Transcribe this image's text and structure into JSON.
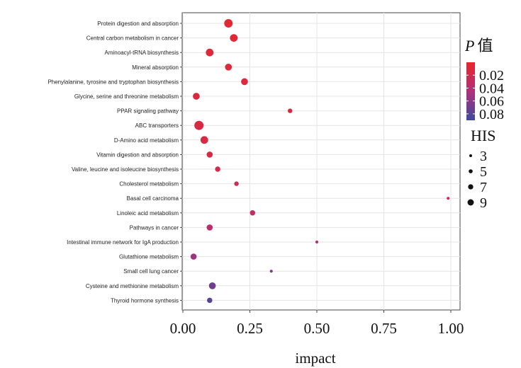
{
  "chart_data": {
    "type": "scatter",
    "xlabel": "impact",
    "ylabel": "",
    "title": "",
    "xlim": [
      0,
      1
    ],
    "x_ticks": [
      "0.00",
      "0.25",
      "0.50",
      "0.75",
      "1.00"
    ],
    "grid": true,
    "color_legend": {
      "title_italic": "P",
      "title_rest": "值",
      "ticks": [
        "0.02",
        "0.04",
        "0.06",
        "0.08"
      ],
      "range": [
        0.0,
        0.09
      ],
      "low_color": "#e8272b",
      "high_color": "#3e4a9e"
    },
    "size_legend": {
      "title": "HIS",
      "values": [
        "3",
        "5",
        "7",
        "9"
      ]
    },
    "points": [
      {
        "category": "Protein digestion and absorption",
        "x": 0.17,
        "p": 0.005,
        "his": 9
      },
      {
        "category": "Central carbon metabolism in cancer",
        "x": 0.19,
        "p": 0.006,
        "his": 8
      },
      {
        "category": "Aminoacyl-tRNA biosynthesis",
        "x": 0.1,
        "p": 0.008,
        "his": 8
      },
      {
        "category": "Mineral absorption",
        "x": 0.17,
        "p": 0.008,
        "his": 7
      },
      {
        "category": "Phenylalanine, tyrosine and tryptophan biosynthesis",
        "x": 0.23,
        "p": 0.009,
        "his": 7
      },
      {
        "category": "Glycine, serine and threonine metabolism",
        "x": 0.05,
        "p": 0.011,
        "his": 7
      },
      {
        "category": "PPAR signaling pathway",
        "x": 0.4,
        "p": 0.012,
        "his": 4
      },
      {
        "category": "ABC transporters",
        "x": 0.06,
        "p": 0.012,
        "his": 10
      },
      {
        "category": "D-Amino acid metabolism",
        "x": 0.08,
        "p": 0.013,
        "his": 8
      },
      {
        "category": "Vitamin digestion and absorption",
        "x": 0.1,
        "p": 0.015,
        "his": 6
      },
      {
        "category": "Valine, leucine and isoleucine biosynthesis",
        "x": 0.13,
        "p": 0.018,
        "his": 5
      },
      {
        "category": "Cholesterol metabolism",
        "x": 0.2,
        "p": 0.024,
        "his": 4
      },
      {
        "category": "Basal cell carcinoma",
        "x": 0.99,
        "p": 0.026,
        "his": 2
      },
      {
        "category": "Linoleic acid metabolism",
        "x": 0.26,
        "p": 0.03,
        "his": 5
      },
      {
        "category": "Pathways in cancer",
        "x": 0.1,
        "p": 0.036,
        "his": 6
      },
      {
        "category": "Intestinal immune network for IgA production",
        "x": 0.5,
        "p": 0.045,
        "his": 2
      },
      {
        "category": "Glutathione metabolism",
        "x": 0.04,
        "p": 0.052,
        "his": 6
      },
      {
        "category": "Small cell lung cancer",
        "x": 0.33,
        "p": 0.062,
        "his": 2
      },
      {
        "category": "Cysteine and methionine metabolism",
        "x": 0.11,
        "p": 0.07,
        "his": 7
      },
      {
        "category": "Thyroid hormone synthesis",
        "x": 0.1,
        "p": 0.08,
        "his": 5
      }
    ]
  }
}
